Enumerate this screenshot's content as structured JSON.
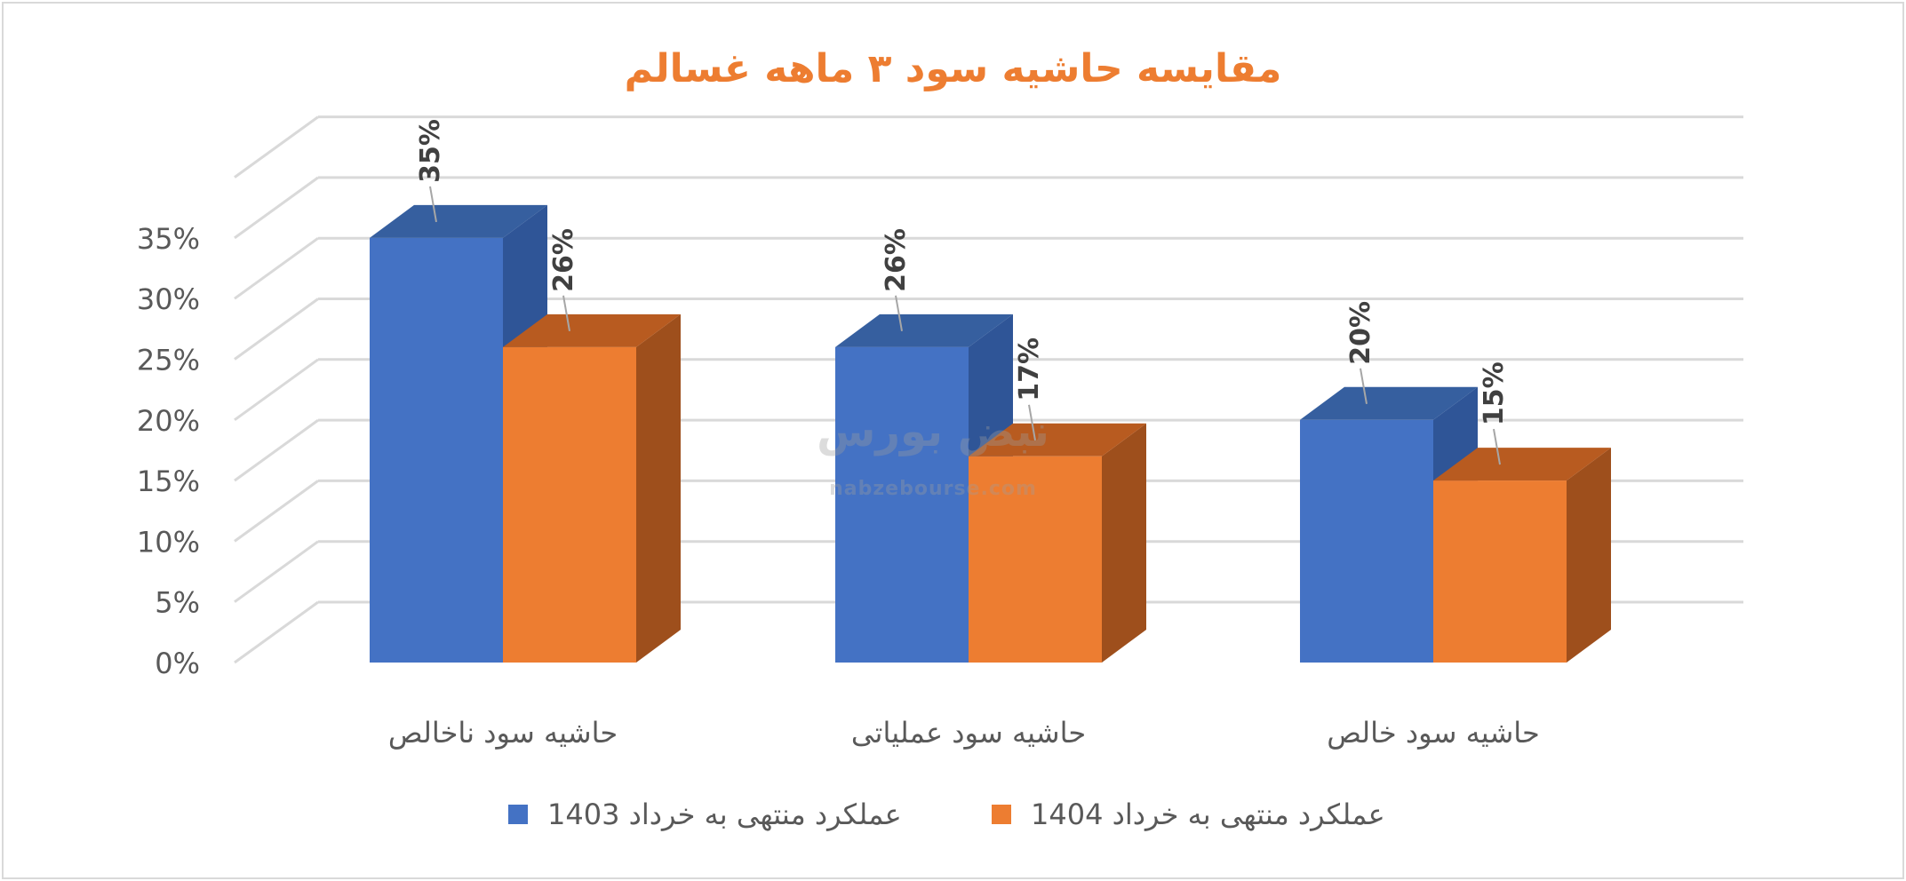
{
  "colors": {
    "series_1403": "#4472c4",
    "series_1404": "#ed7d31",
    "title": "#ed7d31",
    "axis_text": "#595959",
    "label_text": "#404040",
    "gridline": "#d9d9d9"
  },
  "watermark": {
    "brand": "نبض بورس",
    "site": "nabzebourse.com"
  },
  "chart_data": {
    "type": "bar",
    "style": "3d-clustered-column",
    "title": "مقایسه حاشیه سود ۳ ماهه غسالم",
    "categories": [
      "حاشیه سود ناخالص",
      "حاشیه سود عملیاتی",
      "حاشیه سود خالص"
    ],
    "series": [
      {
        "name": "عملکرد منتهی به خرداد 1403",
        "values": [
          35,
          26,
          20
        ],
        "labels": [
          "35%",
          "26%",
          "20%"
        ]
      },
      {
        "name": "عملکرد منتهی به خرداد 1404",
        "values": [
          26,
          17,
          15
        ],
        "labels": [
          "26%",
          "17%",
          "15%"
        ]
      }
    ],
    "yticks": [
      "0%",
      "5%",
      "10%",
      "15%",
      "20%",
      "25%",
      "30%",
      "35%"
    ],
    "ylim": [
      0,
      35
    ],
    "grid": true,
    "legend": "bottom"
  }
}
